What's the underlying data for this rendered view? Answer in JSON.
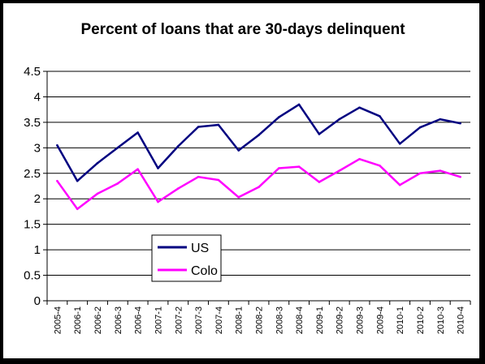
{
  "chart_data": {
    "type": "line",
    "title": "Percent of loans that are 30-days delinquent",
    "xlabel": "",
    "ylabel": "",
    "ylim": [
      0,
      4.5
    ],
    "yticks": [
      "0",
      "0.5",
      "1",
      "1.5",
      "2",
      "2.5",
      "3",
      "3.5",
      "4",
      "4.5"
    ],
    "grid": true,
    "legend_position": "center-left",
    "categories": [
      "2005-4",
      "2006-1",
      "2006-2",
      "2006-3",
      "2006-4",
      "2007-1",
      "2007-2",
      "2007-3",
      "2007-4",
      "2008-1",
      "2008-2",
      "2008-3",
      "2008-4",
      "2009-1",
      "2009-2",
      "2009-3",
      "2009-4",
      "2010-1",
      "2010-2",
      "2010-3",
      "2010-4"
    ],
    "series": [
      {
        "name": "US",
        "color": "#000080",
        "values": [
          3.05,
          2.35,
          2.7,
          3.0,
          3.3,
          2.6,
          3.03,
          3.41,
          3.45,
          2.95,
          3.25,
          3.6,
          3.85,
          3.27,
          3.56,
          3.79,
          3.62,
          3.08,
          3.4,
          3.56,
          3.48
        ]
      },
      {
        "name": "Colo",
        "color": "#FF00FF",
        "values": [
          2.35,
          1.8,
          2.1,
          2.3,
          2.58,
          1.94,
          2.2,
          2.43,
          2.37,
          2.03,
          2.23,
          2.6,
          2.63,
          2.33,
          2.55,
          2.78,
          2.65,
          2.27,
          2.5,
          2.55,
          2.43
        ]
      }
    ]
  }
}
